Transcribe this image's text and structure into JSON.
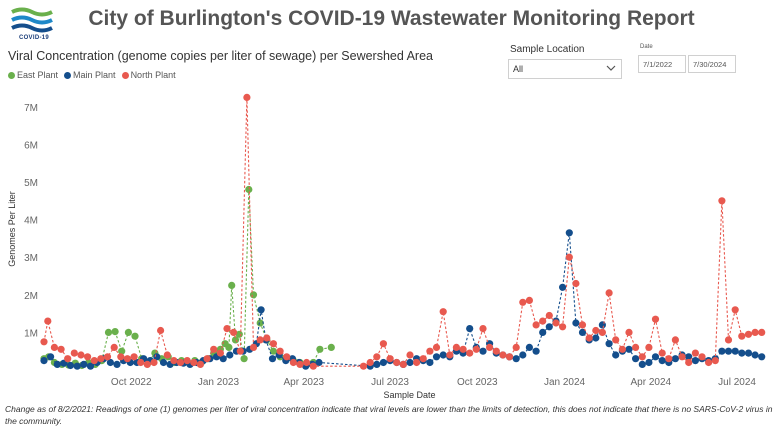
{
  "header": {
    "logo_text": "COVID-19",
    "title": "City of Burlington's COVID-19 Wastewater Monitoring Report"
  },
  "filters": {
    "location_label": "Sample Location",
    "location_value": "All",
    "date_label": "Date",
    "date_start": "7/1/2022",
    "date_end": "7/30/2024"
  },
  "footnote": "Change as of 8/2/2021: Readings of one (1) genomes per liter of viral concentration indicate that viral levels are lower than the limits of detection, this does not indicate that there is no SARS-CoV-2 virus in the community.",
  "colors": {
    "east": "#6ab04c",
    "main": "#144e8c",
    "north": "#e8594f"
  },
  "chart_data": {
    "type": "scatter",
    "title": "Viral Concentration (genome copies per liter of sewage) per Sewershed Area",
    "xlabel": "Sample Date",
    "ylabel": "Genomes Per Liter",
    "ylim": [
      0,
      7500000
    ],
    "xlim": [
      "2022-07-01",
      "2024-08-10"
    ],
    "y_ticks": [
      1000000,
      2000000,
      3000000,
      4000000,
      5000000,
      6000000,
      7000000
    ],
    "y_tick_labels": [
      "1M",
      "2M",
      "3M",
      "4M",
      "5M",
      "6M",
      "7M"
    ],
    "x_ticks": [
      "2022-10-01",
      "2023-01-01",
      "2023-04-01",
      "2023-07-01",
      "2023-10-01",
      "2024-01-01",
      "2024-04-01",
      "2024-07-01"
    ],
    "x_tick_labels": [
      "Oct 2022",
      "Jan 2023",
      "Apr 2023",
      "Jul 2023",
      "Oct 2023",
      "Jan 2024",
      "Apr 2024",
      "Jul 2024"
    ],
    "grid": false,
    "legend": "top-left",
    "series": [
      {
        "name": "East Plant",
        "color": "#6ab04c",
        "points": [
          [
            "2022-07-01",
            300000
          ],
          [
            "2022-07-06",
            350000
          ],
          [
            "2022-07-12",
            200000
          ],
          [
            "2022-07-20",
            150000
          ],
          [
            "2022-07-27",
            130000
          ],
          [
            "2022-08-03",
            180000
          ],
          [
            "2022-08-10",
            120000
          ],
          [
            "2022-08-17",
            200000
          ],
          [
            "2022-08-24",
            150000
          ],
          [
            "2022-08-31",
            250000
          ],
          [
            "2022-09-07",
            1000000
          ],
          [
            "2022-09-14",
            1020000
          ],
          [
            "2022-09-21",
            500000
          ],
          [
            "2022-09-28",
            1000000
          ],
          [
            "2022-10-05",
            900000
          ],
          [
            "2022-10-12",
            300000
          ],
          [
            "2022-10-19",
            200000
          ],
          [
            "2022-10-26",
            450000
          ],
          [
            "2022-11-02",
            300000
          ],
          [
            "2022-11-09",
            350000
          ],
          [
            "2022-11-16",
            200000
          ],
          [
            "2022-11-23",
            250000
          ],
          [
            "2022-11-30",
            200000
          ],
          [
            "2022-12-07",
            250000
          ],
          [
            "2022-12-14",
            200000
          ],
          [
            "2022-12-21",
            300000
          ],
          [
            "2022-12-27",
            450000
          ],
          [
            "2023-01-03",
            550000
          ],
          [
            "2023-01-08",
            700000
          ],
          [
            "2023-01-12",
            600000
          ],
          [
            "2023-01-15",
            2250000
          ],
          [
            "2023-01-19",
            800000
          ],
          [
            "2023-01-23",
            950000
          ],
          [
            "2023-01-28",
            300000
          ],
          [
            "2023-02-02",
            4800000
          ],
          [
            "2023-02-07",
            2000000
          ],
          [
            "2023-02-14",
            1250000
          ],
          [
            "2023-02-21",
            800000
          ],
          [
            "2023-02-28",
            500000
          ],
          [
            "2023-03-07",
            350000
          ],
          [
            "2023-03-14",
            300000
          ],
          [
            "2023-03-21",
            250000
          ],
          [
            "2023-03-28",
            200000
          ],
          [
            "2023-04-04",
            150000
          ],
          [
            "2023-04-11",
            200000
          ],
          [
            "2023-04-18",
            550000
          ],
          [
            "2023-04-30",
            600000
          ]
        ]
      },
      {
        "name": "Main Plant",
        "color": "#144e8c",
        "points": [
          [
            "2022-07-01",
            250000
          ],
          [
            "2022-07-08",
            350000
          ],
          [
            "2022-07-15",
            150000
          ],
          [
            "2022-07-22",
            180000
          ],
          [
            "2022-07-29",
            120000
          ],
          [
            "2022-08-05",
            100000
          ],
          [
            "2022-08-12",
            150000
          ],
          [
            "2022-08-19",
            100000
          ],
          [
            "2022-08-26",
            200000
          ],
          [
            "2022-09-02",
            300000
          ],
          [
            "2022-09-09",
            200000
          ],
          [
            "2022-09-16",
            150000
          ],
          [
            "2022-09-23",
            250000
          ],
          [
            "2022-09-30",
            200000
          ],
          [
            "2022-10-07",
            200000
          ],
          [
            "2022-10-14",
            300000
          ],
          [
            "2022-10-21",
            250000
          ],
          [
            "2022-10-28",
            350000
          ],
          [
            "2022-11-04",
            200000
          ],
          [
            "2022-11-11",
            150000
          ],
          [
            "2022-11-18",
            200000
          ],
          [
            "2022-11-25",
            180000
          ],
          [
            "2022-12-02",
            150000
          ],
          [
            "2022-12-09",
            200000
          ],
          [
            "2022-12-16",
            250000
          ],
          [
            "2022-12-23",
            300000
          ],
          [
            "2022-12-30",
            350000
          ],
          [
            "2023-01-06",
            300000
          ],
          [
            "2023-01-13",
            400000
          ],
          [
            "2023-01-20",
            500000
          ],
          [
            "2023-01-27",
            500000
          ],
          [
            "2023-02-03",
            550000
          ],
          [
            "2023-02-10",
            700000
          ],
          [
            "2023-02-15",
            1600000
          ],
          [
            "2023-02-20",
            800000
          ],
          [
            "2023-02-27",
            300000
          ],
          [
            "2023-03-06",
            400000
          ],
          [
            "2023-03-13",
            250000
          ],
          [
            "2023-03-20",
            300000
          ],
          [
            "2023-03-27",
            200000
          ],
          [
            "2023-04-03",
            100000
          ],
          [
            "2023-04-10",
            150000
          ],
          [
            "2023-04-17",
            200000
          ],
          [
            "2023-06-10",
            100000
          ],
          [
            "2023-06-17",
            150000
          ],
          [
            "2023-06-24",
            200000
          ],
          [
            "2023-07-01",
            250000
          ],
          [
            "2023-07-08",
            200000
          ],
          [
            "2023-07-15",
            150000
          ],
          [
            "2023-07-22",
            200000
          ],
          [
            "2023-07-29",
            300000
          ],
          [
            "2023-08-05",
            250000
          ],
          [
            "2023-08-12",
            200000
          ],
          [
            "2023-08-19",
            350000
          ],
          [
            "2023-08-26",
            400000
          ],
          [
            "2023-09-02",
            350000
          ],
          [
            "2023-09-09",
            500000
          ],
          [
            "2023-09-16",
            450000
          ],
          [
            "2023-09-23",
            1100000
          ],
          [
            "2023-09-30",
            600000
          ],
          [
            "2023-10-07",
            500000
          ],
          [
            "2023-10-14",
            700000
          ],
          [
            "2023-10-21",
            450000
          ],
          [
            "2023-10-28",
            400000
          ],
          [
            "2023-11-04",
            350000
          ],
          [
            "2023-11-11",
            300000
          ],
          [
            "2023-11-18",
            400000
          ],
          [
            "2023-11-25",
            600000
          ],
          [
            "2023-12-02",
            500000
          ],
          [
            "2023-12-09",
            1000000
          ],
          [
            "2023-12-16",
            1150000
          ],
          [
            "2023-12-23",
            1300000
          ],
          [
            "2023-12-30",
            2200000
          ],
          [
            "2024-01-06",
            3650000
          ],
          [
            "2024-01-13",
            1250000
          ],
          [
            "2024-01-20",
            1000000
          ],
          [
            "2024-01-27",
            800000
          ],
          [
            "2024-02-03",
            850000
          ],
          [
            "2024-02-10",
            1200000
          ],
          [
            "2024-02-17",
            700000
          ],
          [
            "2024-02-24",
            400000
          ],
          [
            "2024-03-02",
            500000
          ],
          [
            "2024-03-09",
            550000
          ],
          [
            "2024-03-16",
            300000
          ],
          [
            "2024-03-23",
            150000
          ],
          [
            "2024-03-30",
            200000
          ],
          [
            "2024-04-06",
            350000
          ],
          [
            "2024-04-13",
            250000
          ],
          [
            "2024-04-20",
            200000
          ],
          [
            "2024-04-27",
            300000
          ],
          [
            "2024-05-04",
            400000
          ],
          [
            "2024-05-11",
            350000
          ],
          [
            "2024-05-18",
            250000
          ],
          [
            "2024-05-25",
            300000
          ],
          [
            "2024-06-01",
            250000
          ],
          [
            "2024-06-08",
            300000
          ],
          [
            "2024-06-15",
            500000
          ],
          [
            "2024-06-22",
            500000
          ],
          [
            "2024-06-29",
            500000
          ],
          [
            "2024-07-06",
            450000
          ],
          [
            "2024-07-13",
            450000
          ],
          [
            "2024-07-20",
            400000
          ],
          [
            "2024-07-27",
            350000
          ]
        ]
      },
      {
        "name": "North Plant",
        "color": "#e8594f",
        "points": [
          [
            "2022-07-01",
            750000
          ],
          [
            "2022-07-05",
            1300000
          ],
          [
            "2022-07-12",
            600000
          ],
          [
            "2022-07-19",
            550000
          ],
          [
            "2022-07-26",
            300000
          ],
          [
            "2022-08-02",
            450000
          ],
          [
            "2022-08-09",
            400000
          ],
          [
            "2022-08-16",
            350000
          ],
          [
            "2022-08-23",
            250000
          ],
          [
            "2022-08-30",
            300000
          ],
          [
            "2022-09-06",
            350000
          ],
          [
            "2022-09-13",
            600000
          ],
          [
            "2022-09-20",
            350000
          ],
          [
            "2022-09-27",
            300000
          ],
          [
            "2022-10-04",
            350000
          ],
          [
            "2022-10-11",
            200000
          ],
          [
            "2022-10-18",
            150000
          ],
          [
            "2022-10-25",
            200000
          ],
          [
            "2022-11-01",
            1050000
          ],
          [
            "2022-11-08",
            400000
          ],
          [
            "2022-11-15",
            250000
          ],
          [
            "2022-11-22",
            200000
          ],
          [
            "2022-11-29",
            250000
          ],
          [
            "2022-12-06",
            200000
          ],
          [
            "2022-12-13",
            150000
          ],
          [
            "2022-12-20",
            300000
          ],
          [
            "2022-12-27",
            550000
          ],
          [
            "2023-01-03",
            450000
          ],
          [
            "2023-01-10",
            1100000
          ],
          [
            "2023-01-17",
            1000000
          ],
          [
            "2023-01-24",
            500000
          ],
          [
            "2023-01-31",
            7250000
          ],
          [
            "2023-02-07",
            600000
          ],
          [
            "2023-02-14",
            800000
          ],
          [
            "2023-02-21",
            850000
          ],
          [
            "2023-02-28",
            700000
          ],
          [
            "2023-03-07",
            500000
          ],
          [
            "2023-03-14",
            350000
          ],
          [
            "2023-03-21",
            200000
          ],
          [
            "2023-03-28",
            150000
          ],
          [
            "2023-04-04",
            200000
          ],
          [
            "2023-04-11",
            100000
          ],
          [
            "2023-06-03",
            100000
          ],
          [
            "2023-06-10",
            200000
          ],
          [
            "2023-06-17",
            350000
          ],
          [
            "2023-06-24",
            700000
          ],
          [
            "2023-07-01",
            300000
          ],
          [
            "2023-07-08",
            200000
          ],
          [
            "2023-07-15",
            150000
          ],
          [
            "2023-07-22",
            400000
          ],
          [
            "2023-07-29",
            200000
          ],
          [
            "2023-08-05",
            300000
          ],
          [
            "2023-08-12",
            500000
          ],
          [
            "2023-08-19",
            600000
          ],
          [
            "2023-08-26",
            1550000
          ],
          [
            "2023-09-02",
            400000
          ],
          [
            "2023-09-09",
            600000
          ],
          [
            "2023-09-16",
            550000
          ],
          [
            "2023-09-23",
            450000
          ],
          [
            "2023-09-30",
            550000
          ],
          [
            "2023-10-07",
            1100000
          ],
          [
            "2023-10-14",
            600000
          ],
          [
            "2023-10-21",
            500000
          ],
          [
            "2023-10-28",
            400000
          ],
          [
            "2023-11-04",
            350000
          ],
          [
            "2023-11-11",
            600000
          ],
          [
            "2023-11-18",
            1800000
          ],
          [
            "2023-11-25",
            1850000
          ],
          [
            "2023-12-02",
            1200000
          ],
          [
            "2023-12-09",
            1300000
          ],
          [
            "2023-12-16",
            1450000
          ],
          [
            "2023-12-23",
            1250000
          ],
          [
            "2023-12-30",
            1150000
          ],
          [
            "2024-01-06",
            3000000
          ],
          [
            "2024-01-13",
            2300000
          ],
          [
            "2024-01-20",
            1200000
          ],
          [
            "2024-01-27",
            850000
          ],
          [
            "2024-02-03",
            1050000
          ],
          [
            "2024-02-10",
            1000000
          ],
          [
            "2024-02-17",
            2050000
          ],
          [
            "2024-02-24",
            800000
          ],
          [
            "2024-03-02",
            550000
          ],
          [
            "2024-03-09",
            1000000
          ],
          [
            "2024-03-16",
            600000
          ],
          [
            "2024-03-23",
            350000
          ],
          [
            "2024-03-30",
            600000
          ],
          [
            "2024-04-06",
            1350000
          ],
          [
            "2024-04-13",
            450000
          ],
          [
            "2024-04-20",
            300000
          ],
          [
            "2024-04-27",
            800000
          ],
          [
            "2024-05-04",
            350000
          ],
          [
            "2024-05-11",
            200000
          ],
          [
            "2024-05-18",
            450000
          ],
          [
            "2024-05-25",
            350000
          ],
          [
            "2024-06-01",
            200000
          ],
          [
            "2024-06-08",
            250000
          ],
          [
            "2024-06-15",
            4500000
          ],
          [
            "2024-06-22",
            800000
          ],
          [
            "2024-06-29",
            1600000
          ],
          [
            "2024-07-06",
            900000
          ],
          [
            "2024-07-13",
            950000
          ],
          [
            "2024-07-20",
            1000000
          ],
          [
            "2024-07-27",
            1000000
          ]
        ]
      }
    ]
  }
}
